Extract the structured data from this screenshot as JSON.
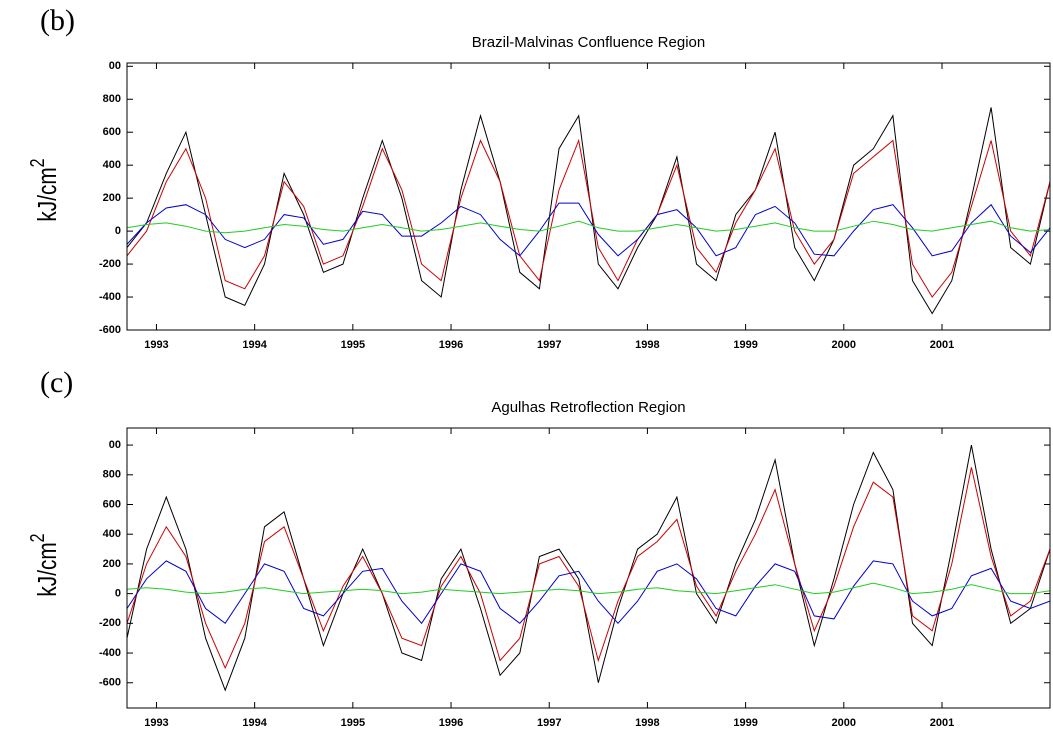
{
  "chart_data": [
    {
      "type": "line",
      "panel": "(b)",
      "title": "Brazil-Malvinas Confluence Region",
      "ylabel": "kJ/cm",
      "ylabel_superscript": "2",
      "x": [
        1993.2,
        1993.4,
        1993.6,
        1993.8,
        1994.0,
        1994.2,
        1994.4,
        1994.6,
        1994.8,
        1995.0,
        1995.2,
        1995.4,
        1995.6,
        1995.8,
        1996.0,
        1996.2,
        1996.4,
        1996.6,
        1996.8,
        1997.0,
        1997.2,
        1997.4,
        1997.6,
        1997.8,
        1998.0,
        1998.2,
        1998.4,
        1998.6,
        1998.8,
        1999.0,
        1999.2,
        1999.4,
        1999.6,
        1999.8,
        2000.0,
        2000.2,
        2000.4,
        2000.6,
        2000.8,
        2001.0,
        2001.2,
        2001.4,
        2001.6,
        2001.8,
        2002.0,
        2002.2,
        2002.4,
        2002.6
      ],
      "xlim": [
        1993.2,
        2002.6
      ],
      "xticks": [
        {
          "value": 1993.5,
          "label": "1993"
        },
        {
          "value": 1994.5,
          "label": "1994"
        },
        {
          "value": 1995.5,
          "label": "1995"
        },
        {
          "value": 1996.5,
          "label": "1996"
        },
        {
          "value": 1997.5,
          "label": "1997"
        },
        {
          "value": 1998.5,
          "label": "1998"
        },
        {
          "value": 1999.5,
          "label": "1999"
        },
        {
          "value": 2000.5,
          "label": "2000"
        },
        {
          "value": 2001.5,
          "label": "2001"
        }
      ],
      "ylim": [
        -600,
        1020
      ],
      "yticks": [
        -600,
        -400,
        -200,
        0,
        200,
        400,
        600,
        800,
        {
          "value": 1000,
          "label": "00"
        }
      ],
      "series": [
        {
          "color": "#000000",
          "values": [
            -100,
            50,
            350,
            600,
            100,
            -400,
            -450,
            -200,
            350,
            100,
            -250,
            -200,
            200,
            550,
            200,
            -300,
            -400,
            250,
            700,
            300,
            -250,
            -350,
            500,
            700,
            -200,
            -350,
            -100,
            100,
            450,
            -200,
            -300,
            100,
            250,
            600,
            -100,
            -300,
            -50,
            400,
            500,
            700,
            -300,
            -500,
            -300,
            200,
            750,
            -100,
            -200,
            300
          ]
        },
        {
          "color": "#cc0000",
          "values": [
            -150,
            0,
            300,
            500,
            200,
            -300,
            -350,
            -150,
            300,
            150,
            -200,
            -150,
            150,
            500,
            250,
            -200,
            -300,
            200,
            550,
            300,
            -150,
            -300,
            250,
            550,
            -100,
            -300,
            -50,
            100,
            400,
            -100,
            -250,
            50,
            250,
            500,
            0,
            -200,
            -50,
            350,
            450,
            550,
            -200,
            -400,
            -250,
            150,
            550,
            0,
            -150,
            300
          ]
        },
        {
          "color": "#0000cc",
          "values": [
            -80,
            50,
            140,
            160,
            100,
            -50,
            -100,
            -50,
            100,
            80,
            -80,
            -50,
            120,
            100,
            -30,
            -30,
            50,
            150,
            100,
            -50,
            -150,
            0,
            170,
            170,
            -20,
            -150,
            -50,
            100,
            130,
            20,
            -150,
            -100,
            100,
            150,
            50,
            -140,
            -150,
            0,
            130,
            160,
            20,
            -150,
            -120,
            50,
            160,
            -30,
            -130,
            20
          ]
        },
        {
          "color": "#22cc22",
          "values": [
            20,
            40,
            50,
            30,
            0,
            -10,
            0,
            20,
            40,
            30,
            10,
            0,
            20,
            40,
            20,
            0,
            10,
            30,
            50,
            30,
            10,
            0,
            30,
            60,
            20,
            0,
            0,
            20,
            40,
            20,
            0,
            10,
            30,
            50,
            20,
            0,
            0,
            30,
            60,
            40,
            10,
            0,
            20,
            40,
            60,
            20,
            0,
            10
          ]
        }
      ]
    },
    {
      "type": "line",
      "panel": "(c)",
      "title": "Agulhas Retroflection Region",
      "ylabel": "kJ/cm",
      "ylabel_superscript": "2",
      "x": [
        1993.2,
        1993.4,
        1993.6,
        1993.8,
        1994.0,
        1994.2,
        1994.4,
        1994.6,
        1994.8,
        1995.0,
        1995.2,
        1995.4,
        1995.6,
        1995.8,
        1996.0,
        1996.2,
        1996.4,
        1996.6,
        1996.8,
        1997.0,
        1997.2,
        1997.4,
        1997.6,
        1997.8,
        1998.0,
        1998.2,
        1998.4,
        1998.6,
        1998.8,
        1999.0,
        1999.2,
        1999.4,
        1999.6,
        1999.8,
        2000.0,
        2000.2,
        2000.4,
        2000.6,
        2000.8,
        2001.0,
        2001.2,
        2001.4,
        2001.6,
        2001.8,
        2002.0,
        2002.2,
        2002.4,
        2002.6
      ],
      "xlim": [
        1993.2,
        2002.6
      ],
      "xticks": [
        {
          "value": 1993.5,
          "label": "1993"
        },
        {
          "value": 1994.5,
          "label": "1994"
        },
        {
          "value": 1995.5,
          "label": "1995"
        },
        {
          "value": 1996.5,
          "label": "1996"
        },
        {
          "value": 1997.5,
          "label": "1997"
        },
        {
          "value": 1998.5,
          "label": "1998"
        },
        {
          "value": 1999.5,
          "label": "1999"
        },
        {
          "value": 2000.5,
          "label": "2000"
        },
        {
          "value": 2001.5,
          "label": "2001"
        }
      ],
      "ylim": [
        -770,
        1115
      ],
      "yticks": [
        -600,
        -400,
        -200,
        0,
        200,
        400,
        600,
        800,
        {
          "value": 1000,
          "label": "00"
        }
      ],
      "series": [
        {
          "color": "#000000",
          "values": [
            -300,
            300,
            650,
            300,
            -300,
            -650,
            -300,
            450,
            550,
            100,
            -350,
            0,
            300,
            0,
            -400,
            -450,
            100,
            300,
            -100,
            -550,
            -400,
            250,
            300,
            100,
            -600,
            -100,
            300,
            400,
            650,
            0,
            -200,
            200,
            500,
            900,
            200,
            -350,
            100,
            600,
            950,
            700,
            -200,
            -350,
            300,
            1000,
            300,
            -200,
            -100,
            300
          ]
        },
        {
          "color": "#cc0000",
          "values": [
            -200,
            200,
            450,
            250,
            -200,
            -500,
            -200,
            350,
            450,
            100,
            -250,
            50,
            250,
            0,
            -300,
            -350,
            50,
            250,
            0,
            -450,
            -300,
            200,
            250,
            50,
            -450,
            -50,
            250,
            350,
            500,
            50,
            -150,
            150,
            400,
            700,
            200,
            -250,
            50,
            450,
            750,
            650,
            -150,
            -250,
            200,
            850,
            250,
            -150,
            -50,
            300
          ]
        },
        {
          "color": "#0000cc",
          "values": [
            -100,
            100,
            220,
            150,
            -100,
            -200,
            0,
            200,
            150,
            -100,
            -150,
            0,
            150,
            170,
            -50,
            -200,
            0,
            200,
            150,
            -100,
            -200,
            -50,
            120,
            150,
            -50,
            -200,
            -50,
            150,
            200,
            100,
            -100,
            -150,
            50,
            200,
            150,
            -150,
            -170,
            50,
            220,
            200,
            -50,
            -150,
            -100,
            120,
            170,
            -50,
            -100,
            -50
          ]
        },
        {
          "color": "#22cc22",
          "values": [
            30,
            40,
            30,
            10,
            0,
            10,
            30,
            40,
            20,
            0,
            10,
            20,
            30,
            20,
            0,
            10,
            30,
            20,
            10,
            0,
            10,
            20,
            30,
            20,
            0,
            10,
            30,
            40,
            20,
            10,
            0,
            20,
            40,
            60,
            30,
            0,
            10,
            40,
            70,
            40,
            0,
            10,
            30,
            60,
            30,
            0,
            0,
            20
          ]
        }
      ]
    }
  ]
}
